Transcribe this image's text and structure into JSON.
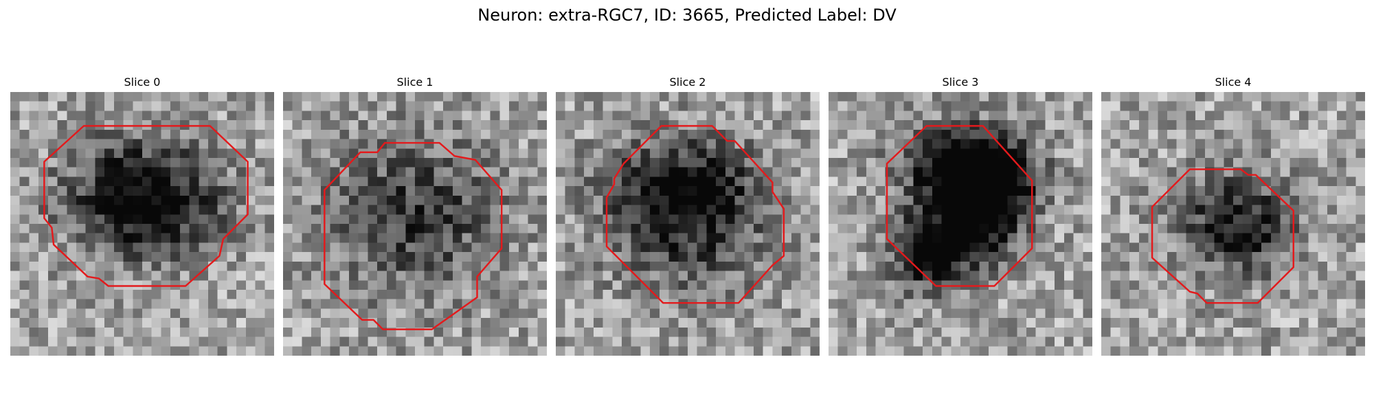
{
  "title": "Neuron: extra-RGC7, ID: 3665, Predicted Label: DV",
  "contour_color": "#e31a1c",
  "colormap": "gray",
  "grid_size": 28,
  "slices": [
    {
      "label": "Slice 0",
      "seed": 11,
      "blobs": [
        [
          14,
          11,
          8,
          6,
          0.62
        ],
        [
          15,
          13,
          6,
          4,
          0.18
        ]
      ],
      "contour": [
        [
          7.8,
          3.6
        ],
        [
          21.2,
          3.6
        ],
        [
          25.2,
          7.4
        ],
        [
          25.2,
          13
        ],
        [
          22.6,
          15.6
        ],
        [
          22.2,
          17.4
        ],
        [
          18.6,
          20.6
        ],
        [
          10.4,
          20.6
        ],
        [
          9.4,
          19.8
        ],
        [
          8.2,
          19.6
        ],
        [
          4.6,
          16.2
        ],
        [
          4.4,
          14.4
        ],
        [
          3.6,
          13.4
        ],
        [
          3.6,
          7.4
        ]
      ]
    },
    {
      "label": "Slice 1",
      "seed": 23,
      "blobs": [
        [
          14,
          13,
          9,
          8,
          0.42
        ]
      ],
      "contour": [
        [
          10.8,
          5.4
        ],
        [
          16.6,
          5.4
        ],
        [
          18.2,
          6.8
        ],
        [
          20.4,
          7.2
        ],
        [
          23.2,
          10.4
        ],
        [
          23.2,
          16.6
        ],
        [
          20.6,
          19.6
        ],
        [
          20.6,
          21.8
        ],
        [
          15.8,
          25.2
        ],
        [
          10.6,
          25.2
        ],
        [
          9.6,
          24.2
        ],
        [
          8.4,
          24.2
        ],
        [
          4.4,
          20.4
        ],
        [
          4.4,
          10.4
        ],
        [
          8.2,
          6.4
        ],
        [
          10,
          6.4
        ]
      ]
    },
    {
      "label": "Slice 2",
      "seed": 37,
      "blobs": [
        [
          13.5,
          10,
          8,
          5,
          0.52
        ],
        [
          14,
          15,
          8,
          7,
          0.34
        ]
      ],
      "contour": [
        [
          11.2,
          3.6
        ],
        [
          16.6,
          3.6
        ],
        [
          18.2,
          5.2
        ],
        [
          19,
          5.2
        ],
        [
          23,
          9.6
        ],
        [
          23,
          10.6
        ],
        [
          24.2,
          12.4
        ],
        [
          24.2,
          17.4
        ],
        [
          23,
          18.4
        ],
        [
          19.4,
          22.4
        ],
        [
          11.4,
          22.4
        ],
        [
          5.4,
          16.4
        ],
        [
          5.4,
          11.2
        ],
        [
          6.2,
          9.8
        ],
        [
          6.2,
          9.2
        ],
        [
          7.2,
          7.6
        ]
      ]
    },
    {
      "label": "Slice 3",
      "seed": 53,
      "blobs": [
        [
          14,
          8,
          6,
          4,
          0.72
        ],
        [
          17,
          10,
          5,
          5,
          0.62
        ],
        [
          11,
          17,
          4,
          4,
          0.72
        ],
        [
          16,
          14,
          4,
          4,
          0.42
        ]
      ],
      "contour": [
        [
          10.4,
          3.6
        ],
        [
          16.4,
          3.6
        ],
        [
          21.6,
          9.4
        ],
        [
          21.6,
          16.6
        ],
        [
          17.6,
          20.6
        ],
        [
          11.4,
          20.6
        ],
        [
          6.2,
          15.6
        ],
        [
          6.2,
          7.6
        ]
      ]
    },
    {
      "label": "Slice 4",
      "seed": 71,
      "blobs": [
        [
          14.5,
          14,
          6,
          5,
          0.58
        ]
      ],
      "contour": [
        [
          9.4,
          8.2
        ],
        [
          14.8,
          8.2
        ],
        [
          15.6,
          8.8
        ],
        [
          16.4,
          8.8
        ],
        [
          20.4,
          12.6
        ],
        [
          20.4,
          18.6
        ],
        [
          16.6,
          22.4
        ],
        [
          11.2,
          22.4
        ],
        [
          10.2,
          21.4
        ],
        [
          9.4,
          21.2
        ],
        [
          5.4,
          17.6
        ],
        [
          5.4,
          12.2
        ]
      ]
    }
  ]
}
